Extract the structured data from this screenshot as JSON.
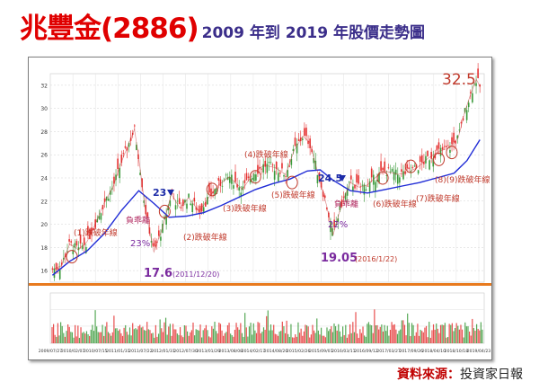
{
  "header": {
    "title_main": "兆豐金(2886)",
    "title_sub": "2009 年到 2019 年股價走勢圖"
  },
  "source": {
    "label": "資料來源：",
    "name": "投資家日報"
  },
  "colors": {
    "title": "#e00000",
    "subtitle": "#3b2e8a",
    "price_up": "#e53030",
    "price_down": "#3a9a3a",
    "moving_average": "#1f2bd6",
    "annotation_red": "#c0392b",
    "annotation_purple": "#7a2a9e",
    "annotation_blue": "#1c2ba8",
    "annotation_pink": "#b0265e",
    "circle_markers": "#c0392b",
    "separator_band": "#e87a1e",
    "source_label": "#c00000"
  },
  "chart_data": {
    "type": "line",
    "title": "",
    "xlabel": "",
    "ylabel": "",
    "ylim": [
      15,
      33
    ],
    "y_ticks": [
      16,
      18,
      20,
      22,
      24,
      26,
      28,
      30,
      32
    ],
    "grid": true,
    "x_range": [
      "2009-07",
      "2019-06"
    ],
    "x_ticks": [
      "2009/07/27",
      "2010/02/07",
      "2010/07/15",
      "2011/01/31",
      "2011/07/22",
      "2012/01/31",
      "2012/07/30",
      "2013/01/29",
      "2013/08/08",
      "2014/02/17",
      "2014/08/20",
      "2015/02/26",
      "2015/09/01",
      "2016/03/11",
      "2016/09/12",
      "2017/03/27",
      "2017/09/26",
      "2018/04/10",
      "2018/10/18",
      "2019/04/23"
    ],
    "series": [
      {
        "values": [
          [
            2009.6,
            16.1
          ],
          [
            2009.8,
            16.4
          ],
          [
            2010.0,
            18.3
          ],
          [
            2010.2,
            17.8
          ],
          [
            2010.4,
            18.5
          ],
          [
            2010.6,
            20.1
          ],
          [
            2010.8,
            21.9
          ],
          [
            2011.0,
            23.2
          ],
          [
            2011.2,
            25.4
          ],
          [
            2011.35,
            26.8
          ],
          [
            2011.5,
            28.2
          ],
          [
            2011.6,
            25.7
          ],
          [
            2011.75,
            21.3
          ],
          [
            2011.95,
            17.6
          ],
          [
            2012.15,
            19.7
          ],
          [
            2012.35,
            22.6
          ],
          [
            2012.55,
            21.4
          ],
          [
            2012.75,
            22.3
          ],
          [
            2013.0,
            21.1
          ],
          [
            2013.2,
            22.2
          ],
          [
            2013.45,
            23.4
          ],
          [
            2013.7,
            24.1
          ],
          [
            2014.0,
            23.0
          ],
          [
            2014.25,
            24.4
          ],
          [
            2014.5,
            25.1
          ],
          [
            2014.75,
            24.9
          ],
          [
            2015.0,
            24.3
          ],
          [
            2015.2,
            26.4
          ],
          [
            2015.4,
            27.6
          ],
          [
            2015.55,
            27.1
          ],
          [
            2015.75,
            24.4
          ],
          [
            2015.95,
            21.6
          ],
          [
            2016.1,
            19.05
          ],
          [
            2016.3,
            21.8
          ],
          [
            2016.5,
            23.6
          ],
          [
            2016.7,
            23.2
          ],
          [
            2016.9,
            23.4
          ],
          [
            2017.1,
            24.1
          ],
          [
            2017.3,
            24.6
          ],
          [
            2017.6,
            24.3
          ],
          [
            2017.85,
            24.5
          ],
          [
            2018.05,
            24.9
          ],
          [
            2018.3,
            25.7
          ],
          [
            2018.55,
            26.3
          ],
          [
            2018.8,
            26.6
          ],
          [
            2019.0,
            27.5
          ],
          [
            2019.15,
            29.7
          ],
          [
            2019.3,
            31.4
          ],
          [
            2019.42,
            32.5
          ],
          [
            2019.5,
            31.9
          ]
        ]
      },
      {
        "values": [
          [
            2009.6,
            15.6
          ],
          [
            2010.0,
            16.8
          ],
          [
            2010.4,
            17.7
          ],
          [
            2010.8,
            19.2
          ],
          [
            2011.2,
            21.2
          ],
          [
            2011.6,
            22.9
          ],
          [
            2011.95,
            21.8
          ],
          [
            2012.3,
            20.6
          ],
          [
            2012.7,
            20.7
          ],
          [
            2013.1,
            21.0
          ],
          [
            2013.5,
            21.6
          ],
          [
            2013.9,
            22.3
          ],
          [
            2014.3,
            23.0
          ],
          [
            2014.7,
            23.5
          ],
          [
            2015.1,
            23.9
          ],
          [
            2015.5,
            24.6
          ],
          [
            2015.8,
            24.7
          ],
          [
            2016.1,
            23.8
          ],
          [
            2016.5,
            22.9
          ],
          [
            2016.9,
            22.7
          ],
          [
            2017.3,
            23.0
          ],
          [
            2017.7,
            23.3
          ],
          [
            2018.1,
            23.6
          ],
          [
            2018.5,
            24.0
          ],
          [
            2018.9,
            24.4
          ],
          [
            2019.2,
            25.5
          ],
          [
            2019.5,
            27.3
          ]
        ]
      }
    ],
    "annotations": {
      "max_label": "32.5",
      "level_17": "17.6",
      "level_17_date": "(2011/12/20)",
      "level_19": "19.05",
      "level_19_date": "(2016/1/22)",
      "level_23": "23",
      "level_24": "24.5",
      "bias_label": "負乖離",
      "bias_1": "23%",
      "bias_2": "22%",
      "break_1": "(1)跌破年線",
      "break_2": "(2)跌破年線",
      "break_3": "(3)跌破年線",
      "break_4": "(4)跌破年線",
      "break_5": "(5)跌破年線",
      "break_6": "(6)跌破年線",
      "break_7": "(7)跌破年線",
      "break_89": "(8)(9)跌破年線"
    }
  }
}
